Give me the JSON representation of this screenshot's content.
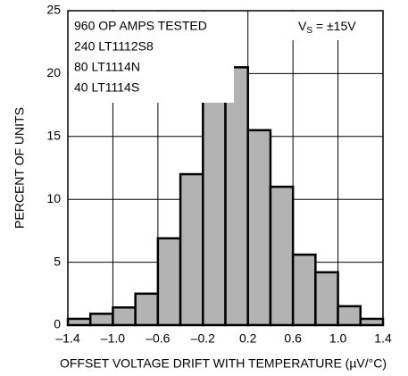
{
  "chart_data": {
    "type": "histogram",
    "xlabel": "OFFSET VOLTAGE DRIFT WITH TEMPERATURE (µV/°C)",
    "ylabel": "PERCENT OF UNITS",
    "annotations": [
      "960 OP AMPS TESTED",
      "240 LT1112S8",
      "80 LT1114N",
      "40 LT1114S"
    ],
    "supply_note": {
      "main": "V",
      "sub": "S",
      "rest": " = ±15V"
    },
    "bins": [
      -1.4,
      -1.2,
      -1.0,
      -0.8,
      -0.6,
      -0.4,
      -0.2,
      0,
      0.2,
      0.4,
      0.6,
      0.8,
      1.0,
      1.2,
      1.4
    ],
    "values": [
      0.5,
      0.9,
      1.4,
      2.5,
      6.9,
      12,
      20,
      20.5,
      15.5,
      11,
      5.6,
      4.2,
      1.5,
      0.5
    ],
    "color": "#b3b3b3",
    "xlim": [
      -1.4,
      1.4
    ],
    "xticks": [
      {
        "value": -1.4,
        "label": "–1.4"
      },
      {
        "value": -1.0,
        "label": "–1.0"
      },
      {
        "value": -0.6,
        "label": "–0.6"
      },
      {
        "value": -0.2,
        "label": "–0.2"
      },
      0.2,
      0.6,
      {
        "value": 1.0,
        "label": "1.0"
      },
      1.4
    ],
    "ylim": [
      0,
      25
    ],
    "yticks": [
      0,
      5,
      10,
      15,
      20,
      25
    ],
    "grid": true
  }
}
